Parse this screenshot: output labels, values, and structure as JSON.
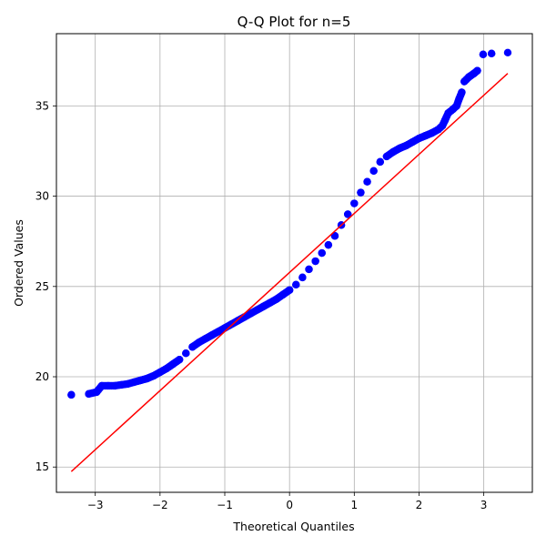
{
  "chart_data": {
    "type": "scatter",
    "title": "Q-Q Plot for n=5",
    "xlabel": "Theoretical Quantiles",
    "ylabel": "Ordered Values",
    "xlim": [
      -3.6,
      3.75
    ],
    "ylim": [
      13.6,
      39.0
    ],
    "xticks": [
      -3,
      -2,
      -1,
      0,
      1,
      2,
      3
    ],
    "yticks": [
      15,
      20,
      25,
      30,
      35
    ],
    "grid": true,
    "legend": "none",
    "colors": {
      "points": "#0000ff",
      "fit_line": "#ff0000",
      "grid": "#b0b0b0"
    },
    "series": [
      {
        "kind": "points",
        "points": [
          [
            -3.37,
            19.0
          ],
          [
            -3.1,
            19.05
          ],
          [
            -2.98,
            19.15
          ],
          [
            -2.9,
            19.5
          ],
          [
            -2.8,
            19.5
          ],
          [
            -2.7,
            19.5
          ],
          [
            -2.6,
            19.55
          ],
          [
            -2.5,
            19.6
          ],
          [
            -2.4,
            19.7
          ],
          [
            -2.3,
            19.8
          ],
          [
            -2.2,
            19.9
          ],
          [
            -2.1,
            20.05
          ],
          [
            -2.0,
            20.25
          ],
          [
            -1.9,
            20.45
          ],
          [
            -1.8,
            20.7
          ],
          [
            -1.7,
            20.95
          ],
          [
            -1.6,
            21.3
          ],
          [
            -1.5,
            21.65
          ],
          [
            -1.4,
            21.9
          ],
          [
            -1.3,
            22.1
          ],
          [
            -1.2,
            22.3
          ],
          [
            -1.1,
            22.5
          ],
          [
            -1.0,
            22.7
          ],
          [
            -0.9,
            22.9
          ],
          [
            -0.8,
            23.1
          ],
          [
            -0.7,
            23.3
          ],
          [
            -0.6,
            23.5
          ],
          [
            -0.5,
            23.7
          ],
          [
            -0.4,
            23.9
          ],
          [
            -0.3,
            24.1
          ],
          [
            -0.2,
            24.3
          ],
          [
            -0.1,
            24.55
          ],
          [
            0.0,
            24.8
          ],
          [
            0.1,
            25.1
          ],
          [
            0.2,
            25.5
          ],
          [
            0.3,
            25.95
          ],
          [
            0.4,
            26.4
          ],
          [
            0.5,
            26.85
          ],
          [
            0.6,
            27.3
          ],
          [
            0.7,
            27.8
          ],
          [
            0.8,
            28.4
          ],
          [
            0.9,
            29.0
          ],
          [
            1.0,
            29.6
          ],
          [
            1.1,
            30.2
          ],
          [
            1.2,
            30.8
          ],
          [
            1.3,
            31.4
          ],
          [
            1.4,
            31.9
          ],
          [
            1.5,
            32.2
          ],
          [
            1.6,
            32.45
          ],
          [
            1.7,
            32.65
          ],
          [
            1.8,
            32.8
          ],
          [
            1.9,
            33.0
          ],
          [
            2.0,
            33.2
          ],
          [
            2.1,
            33.35
          ],
          [
            2.2,
            33.5
          ],
          [
            2.3,
            33.7
          ],
          [
            2.36,
            33.9
          ],
          [
            2.4,
            34.2
          ],
          [
            2.45,
            34.6
          ],
          [
            2.52,
            34.8
          ],
          [
            2.58,
            35.0
          ],
          [
            2.62,
            35.4
          ],
          [
            2.66,
            35.75
          ],
          [
            2.7,
            36.35
          ],
          [
            2.77,
            36.6
          ],
          [
            2.85,
            36.8
          ],
          [
            2.9,
            36.95
          ],
          [
            2.99,
            37.85
          ],
          [
            3.12,
            37.9
          ],
          [
            3.37,
            37.95
          ]
        ]
      },
      {
        "kind": "line",
        "points": [
          [
            -3.37,
            14.75
          ],
          [
            3.37,
            36.8
          ]
        ]
      }
    ]
  }
}
